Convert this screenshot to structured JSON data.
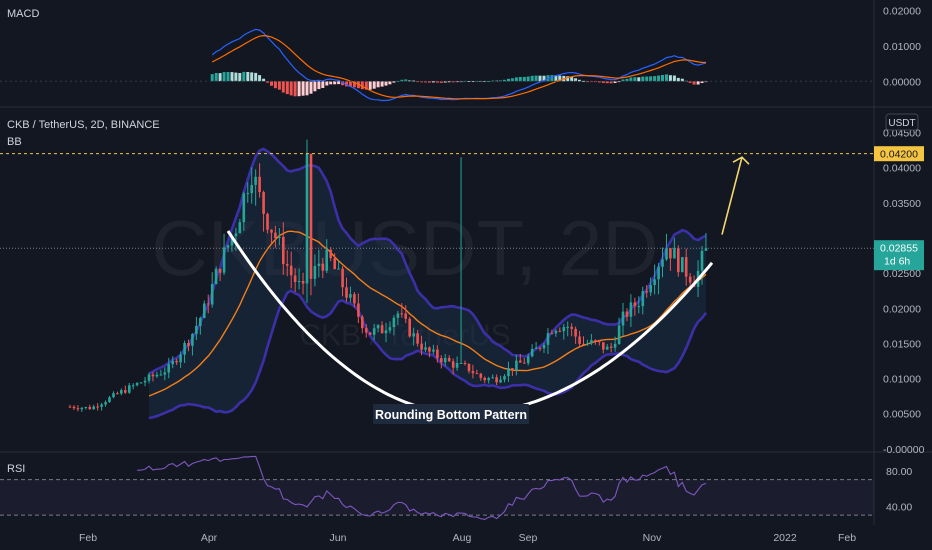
{
  "chart_data": {
    "type": "candlestick",
    "symbol_line": "CKB / TetherUS, 2D, BINANCE",
    "watermark": "CKBUSDT, 2D",
    "watermark_sub": "CKB / TetherUS",
    "indicator_bb": "BB",
    "currency_badge": "USDT",
    "annotation": "Rounding Bottom Pattern",
    "price_axis": {
      "ticks": [
        "0.04500",
        "0.04000",
        "0.03500",
        "0.03000",
        "0.02500",
        "0.02000",
        "0.01500",
        "0.01000",
        "0.00500",
        "-0.00000"
      ],
      "tick_values": [
        0.045,
        0.04,
        0.035,
        0.03,
        0.025,
        0.02,
        0.015,
        0.01,
        0.005,
        0.0
      ],
      "range": [
        -0.0003,
        0.0485
      ]
    },
    "target": {
      "label": "0.04200",
      "value": 0.042,
      "color": "#f5c542"
    },
    "last_price": {
      "label": "0.02855",
      "value": 0.02855,
      "countdown": "1d 6h",
      "color": "#26a69a"
    },
    "x_axis_labels": [
      "Feb",
      "Apr",
      "Jun",
      "Aug",
      "Sep",
      "Nov",
      "2022",
      "Feb"
    ],
    "colors": {
      "up": "#26a69a",
      "down": "#ef5350",
      "bb_band": "#3c30a8",
      "bb_basis": "#f57f17",
      "rsi": "#7e57c2",
      "macd": "#2962ff",
      "signal": "#ff6d00",
      "curve": "#ffffff",
      "arrow": "#f5d76e"
    },
    "candles": [],
    "macd_panel": {
      "title": "MACD",
      "ticks": [
        "0.02000",
        "0.01000",
        "0.00000"
      ],
      "tick_values": [
        0.02,
        0.01,
        0.0
      ],
      "range": [
        -0.007,
        0.023
      ]
    },
    "rsi_panel": {
      "title": "RSI",
      "ticks": [
        "80.00",
        "40.00"
      ],
      "tick_values": [
        80,
        40
      ],
      "range": [
        20,
        100
      ],
      "band": [
        70,
        30
      ]
    }
  }
}
